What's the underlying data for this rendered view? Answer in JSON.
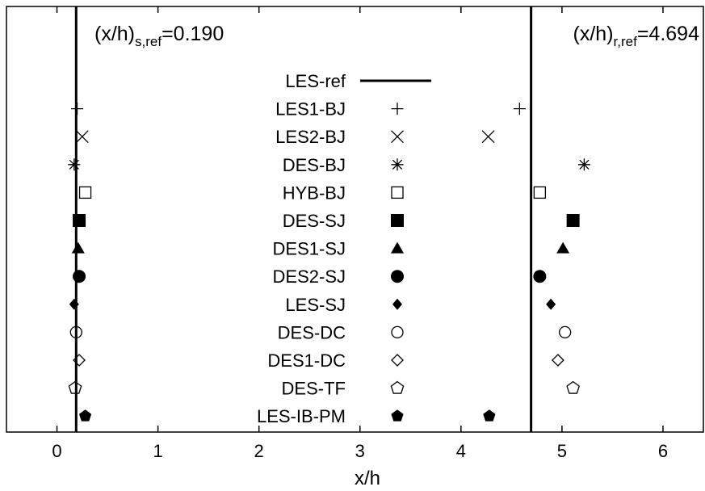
{
  "chart_data": {
    "type": "scatter",
    "xlabel": "x/h",
    "xlim": [
      -0.5,
      6.4
    ],
    "x_ticks": [
      0,
      1,
      2,
      3,
      4,
      5,
      6
    ],
    "grid": false,
    "legend_position": "center",
    "reference_lines": [
      {
        "name": "separation",
        "value": 0.19,
        "label_main": "(x/h)",
        "label_sub": "s,ref",
        "label_value": "=0.190"
      },
      {
        "name": "reattachment",
        "value": 4.694,
        "label_main": "(x/h)",
        "label_sub": "r,ref",
        "label_value": "=4.694"
      }
    ],
    "series": [
      {
        "name": "LES-ref",
        "marker": "line",
        "separation": null,
        "reattachment": null
      },
      {
        "name": "LES1-BJ",
        "marker": "plus",
        "separation": 0.2,
        "reattachment": 4.58
      },
      {
        "name": "LES2-BJ",
        "marker": "cross",
        "separation": 0.25,
        "reattachment": 4.27
      },
      {
        "name": "DES-BJ",
        "marker": "star",
        "separation": 0.17,
        "reattachment": 5.22
      },
      {
        "name": "HYB-BJ",
        "marker": "square-open",
        "separation": 0.28,
        "reattachment": 4.78
      },
      {
        "name": "DES-SJ",
        "marker": "square-filled",
        "separation": 0.22,
        "reattachment": 5.11
      },
      {
        "name": "DES1-SJ",
        "marker": "triangle-filled",
        "separation": 0.21,
        "reattachment": 5.01
      },
      {
        "name": "DES2-SJ",
        "marker": "circle-filled",
        "separation": 0.22,
        "reattachment": 4.78
      },
      {
        "name": "LES-SJ",
        "marker": "diamond-filled",
        "separation": 0.17,
        "reattachment": 4.89
      },
      {
        "name": "DES-DC",
        "marker": "circle-open",
        "separation": 0.19,
        "reattachment": 5.03
      },
      {
        "name": "DES1-DC",
        "marker": "diamond-open",
        "separation": 0.22,
        "reattachment": 4.96
      },
      {
        "name": "DES-TF",
        "marker": "pentagon-open",
        "separation": 0.18,
        "reattachment": 5.11
      },
      {
        "name": "LES-IB-PM",
        "marker": "pentagon-filled",
        "separation": 0.28,
        "reattachment": 4.28
      }
    ]
  }
}
